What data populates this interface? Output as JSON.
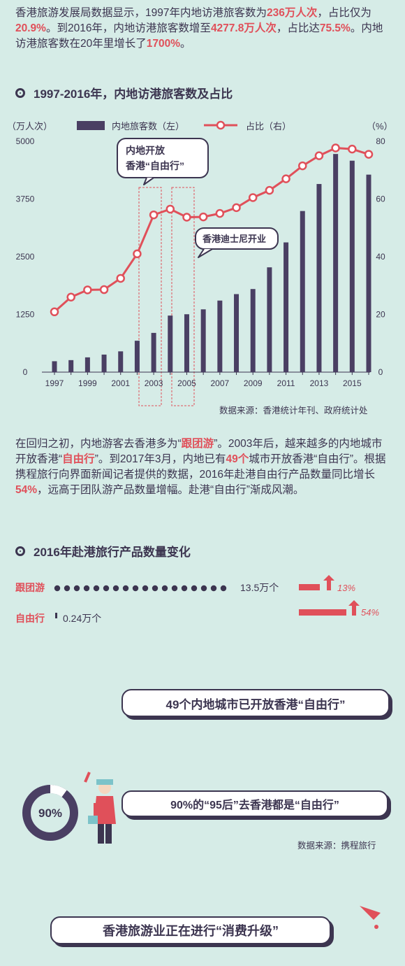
{
  "intro": {
    "p1": "香港旅游发展局数据显示，1997年内地访港旅客数为",
    "h1": "236万人次",
    "p2": "，占比仅为",
    "h2": "20.9%",
    "p3": "。到2016年，内地访港旅客数增至",
    "h3": "4277.8万人次",
    "p4": "，占比达",
    "h4": "75.5%",
    "p5": "。内地访港旅客数在20年里增长了",
    "h5": "1700%",
    "p6": "。"
  },
  "section1": {
    "title": "1997-2016年，内地访港旅客数及占比"
  },
  "chart": {
    "left_unit": "（万人次）",
    "right_unit": "（%）",
    "legend_bar": "内地旅客数（左）",
    "legend_line": "占比（右）",
    "callout1_line1": "内地开放",
    "callout1_line2": "香港“自由行”",
    "callout2": "香港迪士尼开业",
    "source": "数据来源：香港统计年刊、政府统计处",
    "bar_color": "#4a3f63",
    "line_color": "#e0505a"
  },
  "chart_data": {
    "type": "bar+line",
    "years": [
      1997,
      1998,
      1999,
      2000,
      2001,
      2002,
      2003,
      2004,
      2005,
      2006,
      2007,
      2008,
      2009,
      2010,
      2011,
      2012,
      2013,
      2014,
      2015,
      2016
    ],
    "x_tick_labels": [
      "1997",
      "1999",
      "2001",
      "2003",
      "2005",
      "2007",
      "2009",
      "2011",
      "2013",
      "2015"
    ],
    "left_ticks": [
      "0",
      "1250",
      "2500",
      "3750",
      "5000"
    ],
    "right_ticks": [
      "0",
      "20",
      "40",
      "60",
      "80"
    ],
    "ylim_left": [
      0,
      5000
    ],
    "ylim_right": [
      0,
      80
    ],
    "series": [
      {
        "name": "内地旅客数（左）",
        "axis": "left",
        "type": "bar",
        "values": [
          236,
          260,
          320,
          380,
          450,
          680,
          850,
          1225,
          1254,
          1360,
          1550,
          1690,
          1800,
          2270,
          2810,
          3490,
          4075,
          4725,
          4580,
          4278
        ]
      },
      {
        "name": "占比（右）",
        "axis": "right",
        "type": "line",
        "values": [
          20.9,
          26,
          28.5,
          28.6,
          32.5,
          41,
          54.5,
          56.5,
          53.7,
          53.8,
          55,
          57,
          60.5,
          63,
          67,
          71.5,
          75,
          77.7,
          77.3,
          75.5
        ]
      }
    ]
  },
  "para2": {
    "p1": "在回归之初，内地游客去香港多为“",
    "h1": "跟团游",
    "p2": "”。2003年后，越来越多的内地城市开放香港“",
    "h2": "自由行",
    "p3": "”。到2017年3月，内地已有",
    "h3": "49个",
    "p4": "城市开放香港“自由行”。根据携程旅行向界面新闻记者提供的数据，2016年赴港自由行产品数量同比增长",
    "h4": "54%",
    "p5": "，远高于团队游产品数量增幅。赴港“自由行”渐成风潮。"
  },
  "section2": {
    "title": "2016年赴港旅行产品数量变化"
  },
  "products": {
    "group_label": "跟团游",
    "group_value": "13.5万个",
    "group_growth": "13%",
    "free_label": "自由行",
    "free_value": "0.24万个",
    "free_growth": "54%"
  },
  "callouts": {
    "cities": "49个内地城市已开放香港“自由行”",
    "ring_value": "90%",
    "post95": "90%的“95后”去香港都是“自由行”",
    "source": "数据来源：携程旅行",
    "bottom": "香港旅游业正在进行“消费升级”"
  }
}
